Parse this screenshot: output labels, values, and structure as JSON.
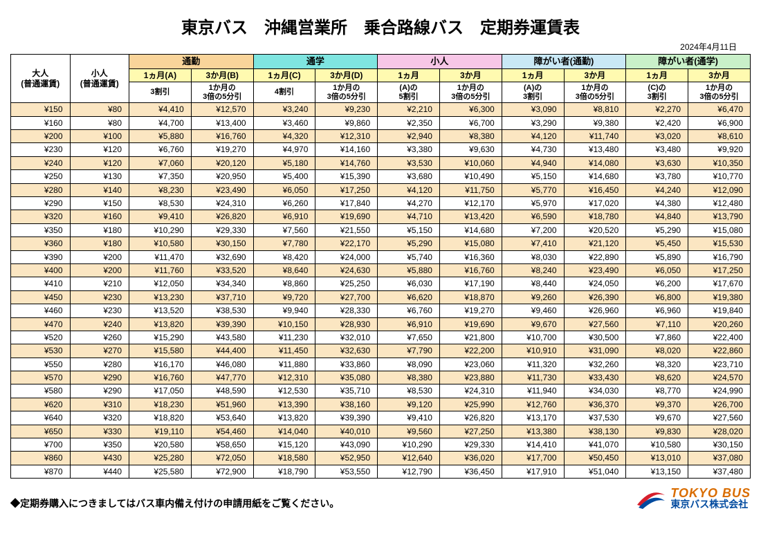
{
  "title": "東京バス　沖縄営業所　乗合路線バス　定期券運賃表",
  "date": "2024年4月11日",
  "corner_adult": "大人\n(普通運賃)",
  "corner_child": "小人\n(普通運賃)",
  "groups": [
    {
      "label": "通勤",
      "bg": "#f9d49a",
      "sub1": "1ヵ月(A)",
      "sub2": "3か月(B)",
      "desc1": "3割引",
      "desc2": "1か月の\n3倍の5分引"
    },
    {
      "label": "通学",
      "bg": "#7fe5e0",
      "sub1": "1ヵ月(C)",
      "sub2": "3か月(D)",
      "desc1": "4割引",
      "desc2": "1か月の\n3倍の5分引"
    },
    {
      "label": "小人",
      "bg": "#f7c6e6",
      "sub1": "1ヵ月",
      "sub2": "3か月",
      "desc1": "(A)の\n5割引",
      "desc2": "1か月の\n3倍の5分引"
    },
    {
      "label": "障がい者(通勤)",
      "bg": "#c9e8f5",
      "sub1": "1ヵ月",
      "sub2": "3か月",
      "desc1": "(A)の\n3割引",
      "desc2": "1か月の\n3倍の5分引"
    },
    {
      "label": "障がい者(通学)",
      "bg": "#c9f0c9",
      "sub1": "1ヵ月",
      "sub2": "3か月",
      "desc1": "(C)の\n3割引",
      "desc2": "1か月の\n3倍の5分引"
    }
  ],
  "sub_header_bg": "#fffab0",
  "row_alt_bg": "#fbe6c2",
  "rows": [
    [
      "¥150",
      "¥80",
      "¥4,410",
      "¥12,570",
      "¥3,240",
      "¥9,230",
      "¥2,210",
      "¥6,300",
      "¥3,090",
      "¥8,810",
      "¥2,270",
      "¥6,470"
    ],
    [
      "¥160",
      "¥80",
      "¥4,700",
      "¥13,400",
      "¥3,460",
      "¥9,860",
      "¥2,350",
      "¥6,700",
      "¥3,290",
      "¥9,380",
      "¥2,420",
      "¥6,900"
    ],
    [
      "¥200",
      "¥100",
      "¥5,880",
      "¥16,760",
      "¥4,320",
      "¥12,310",
      "¥2,940",
      "¥8,380",
      "¥4,120",
      "¥11,740",
      "¥3,020",
      "¥8,610"
    ],
    [
      "¥230",
      "¥120",
      "¥6,760",
      "¥19,270",
      "¥4,970",
      "¥14,160",
      "¥3,380",
      "¥9,630",
      "¥4,730",
      "¥13,480",
      "¥3,480",
      "¥9,920"
    ],
    [
      "¥240",
      "¥120",
      "¥7,060",
      "¥20,120",
      "¥5,180",
      "¥14,760",
      "¥3,530",
      "¥10,060",
      "¥4,940",
      "¥14,080",
      "¥3,630",
      "¥10,350"
    ],
    [
      "¥250",
      "¥130",
      "¥7,350",
      "¥20,950",
      "¥5,400",
      "¥15,390",
      "¥3,680",
      "¥10,490",
      "¥5,150",
      "¥14,680",
      "¥3,780",
      "¥10,770"
    ],
    [
      "¥280",
      "¥140",
      "¥8,230",
      "¥23,490",
      "¥6,050",
      "¥17,250",
      "¥4,120",
      "¥11,750",
      "¥5,770",
      "¥16,450",
      "¥4,240",
      "¥12,090"
    ],
    [
      "¥290",
      "¥150",
      "¥8,530",
      "¥24,310",
      "¥6,260",
      "¥17,840",
      "¥4,270",
      "¥12,170",
      "¥5,970",
      "¥17,020",
      "¥4,380",
      "¥12,480"
    ],
    [
      "¥320",
      "¥160",
      "¥9,410",
      "¥26,820",
      "¥6,910",
      "¥19,690",
      "¥4,710",
      "¥13,420",
      "¥6,590",
      "¥18,780",
      "¥4,840",
      "¥13,790"
    ],
    [
      "¥350",
      "¥180",
      "¥10,290",
      "¥29,330",
      "¥7,560",
      "¥21,550",
      "¥5,150",
      "¥14,680",
      "¥7,200",
      "¥20,520",
      "¥5,290",
      "¥15,080"
    ],
    [
      "¥360",
      "¥180",
      "¥10,580",
      "¥30,150",
      "¥7,780",
      "¥22,170",
      "¥5,290",
      "¥15,080",
      "¥7,410",
      "¥21,120",
      "¥5,450",
      "¥15,530"
    ],
    [
      "¥390",
      "¥200",
      "¥11,470",
      "¥32,690",
      "¥8,420",
      "¥24,000",
      "¥5,740",
      "¥16,360",
      "¥8,030",
      "¥22,890",
      "¥5,890",
      "¥16,790"
    ],
    [
      "¥400",
      "¥200",
      "¥11,760",
      "¥33,520",
      "¥8,640",
      "¥24,630",
      "¥5,880",
      "¥16,760",
      "¥8,240",
      "¥23,490",
      "¥6,050",
      "¥17,250"
    ],
    [
      "¥410",
      "¥210",
      "¥12,050",
      "¥34,340",
      "¥8,860",
      "¥25,250",
      "¥6,030",
      "¥17,190",
      "¥8,440",
      "¥24,050",
      "¥6,200",
      "¥17,670"
    ],
    [
      "¥450",
      "¥230",
      "¥13,230",
      "¥37,710",
      "¥9,720",
      "¥27,700",
      "¥6,620",
      "¥18,870",
      "¥9,260",
      "¥26,390",
      "¥6,800",
      "¥19,380"
    ],
    [
      "¥460",
      "¥230",
      "¥13,520",
      "¥38,530",
      "¥9,940",
      "¥28,330",
      "¥6,760",
      "¥19,270",
      "¥9,460",
      "¥26,960",
      "¥6,960",
      "¥19,840"
    ],
    [
      "¥470",
      "¥240",
      "¥13,820",
      "¥39,390",
      "¥10,150",
      "¥28,930",
      "¥6,910",
      "¥19,690",
      "¥9,670",
      "¥27,560",
      "¥7,110",
      "¥20,260"
    ],
    [
      "¥520",
      "¥260",
      "¥15,290",
      "¥43,580",
      "¥11,230",
      "¥32,010",
      "¥7,650",
      "¥21,800",
      "¥10,700",
      "¥30,500",
      "¥7,860",
      "¥22,400"
    ],
    [
      "¥530",
      "¥270",
      "¥15,580",
      "¥44,400",
      "¥11,450",
      "¥32,630",
      "¥7,790",
      "¥22,200",
      "¥10,910",
      "¥31,090",
      "¥8,020",
      "¥22,860"
    ],
    [
      "¥550",
      "¥280",
      "¥16,170",
      "¥46,080",
      "¥11,880",
      "¥33,860",
      "¥8,090",
      "¥23,060",
      "¥11,320",
      "¥32,260",
      "¥8,320",
      "¥23,710"
    ],
    [
      "¥570",
      "¥290",
      "¥16,760",
      "¥47,770",
      "¥12,310",
      "¥35,080",
      "¥8,380",
      "¥23,880",
      "¥11,730",
      "¥33,430",
      "¥8,620",
      "¥24,570"
    ],
    [
      "¥580",
      "¥290",
      "¥17,050",
      "¥48,590",
      "¥12,530",
      "¥35,710",
      "¥8,530",
      "¥24,310",
      "¥11,940",
      "¥34,030",
      "¥8,770",
      "¥24,990"
    ],
    [
      "¥620",
      "¥310",
      "¥18,230",
      "¥51,960",
      "¥13,390",
      "¥38,160",
      "¥9,120",
      "¥25,990",
      "¥12,760",
      "¥36,370",
      "¥9,370",
      "¥26,700"
    ],
    [
      "¥640",
      "¥320",
      "¥18,820",
      "¥53,640",
      "¥13,820",
      "¥39,390",
      "¥9,410",
      "¥26,820",
      "¥13,170",
      "¥37,530",
      "¥9,670",
      "¥27,560"
    ],
    [
      "¥650",
      "¥330",
      "¥19,110",
      "¥54,460",
      "¥14,040",
      "¥40,010",
      "¥9,560",
      "¥27,250",
      "¥13,380",
      "¥38,130",
      "¥9,830",
      "¥28,020"
    ],
    [
      "¥700",
      "¥350",
      "¥20,580",
      "¥58,650",
      "¥15,120",
      "¥43,090",
      "¥10,290",
      "¥29,330",
      "¥14,410",
      "¥41,070",
      "¥10,580",
      "¥30,150"
    ],
    [
      "¥860",
      "¥430",
      "¥25,280",
      "¥72,050",
      "¥18,580",
      "¥52,950",
      "¥12,640",
      "¥36,020",
      "¥17,700",
      "¥50,450",
      "¥13,010",
      "¥37,080"
    ],
    [
      "¥870",
      "¥440",
      "¥25,580",
      "¥72,900",
      "¥18,790",
      "¥53,550",
      "¥12,790",
      "¥36,450",
      "¥17,910",
      "¥51,040",
      "¥13,150",
      "¥37,480"
    ]
  ],
  "footer_note": "◆定期券購入につきましてはバス車内備え付けの申請用紙をご覧ください。",
  "logo": {
    "en": "TOKYO BUS",
    "en_color": "#d96c00",
    "jp": "東京バス株式会社",
    "jp_color": "#004a9f",
    "swoosh_red": "#d61f2c",
    "swoosh_blue": "#004a9f"
  }
}
